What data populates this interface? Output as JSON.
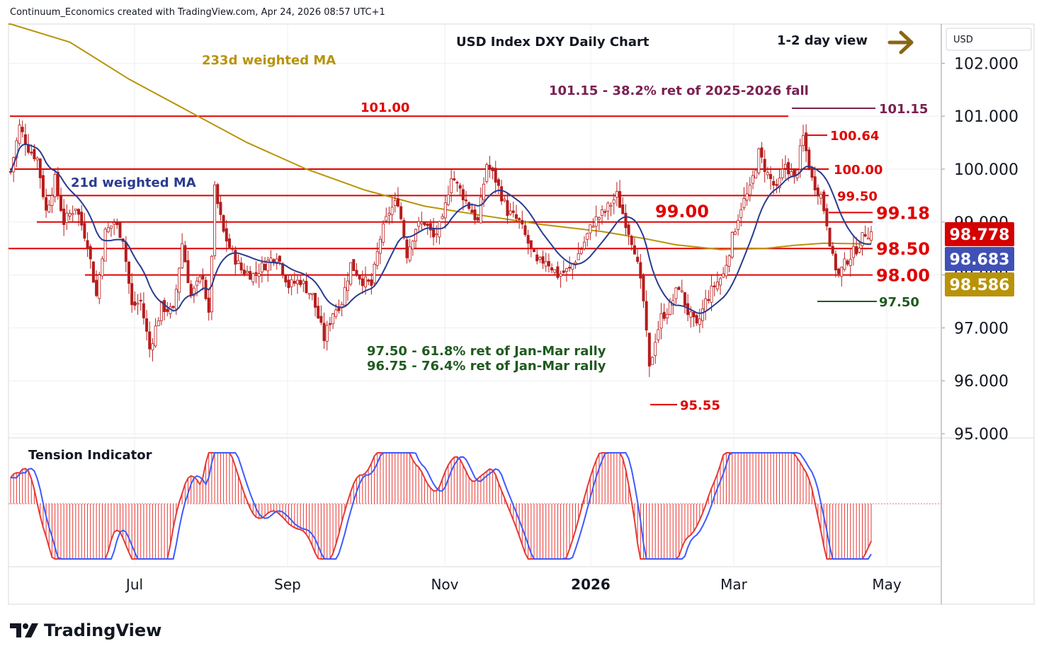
{
  "header": {
    "credit": "Continuum_Economics created with TradingView.com, Apr 24, 2026 08:57 UTC+1"
  },
  "brand": {
    "name": "TradingView"
  },
  "colors": {
    "level_line": "#e00000",
    "ma21": "#2a3b8f",
    "ma233": "#b8930a",
    "retrace_text": "#1f5a1f",
    "fib_text": "#7a1f4f",
    "candle": "#b71c1c",
    "osc_hist": "#e53935",
    "osc_line": "#3d5afe",
    "price_tag": "#d50000",
    "ma21_tag": "#3f51b5",
    "ma233_tag": "#b8930a",
    "arrow": "#8a6614"
  },
  "chart_data": {
    "type": "candlestick",
    "title": "USD Index DXY Daily Chart",
    "view_label": "1-2 day view",
    "view_icon": "right-arrow-icon",
    "currency": "USD",
    "y_ticks": [
      "102.000",
      "101.000",
      "100.000",
      "99.000",
      "98.000",
      "97.000",
      "96.000",
      "95.000"
    ],
    "ylim": [
      94.98,
      102.6
    ],
    "x_ticks": [
      "Jul",
      "Sep",
      "Nov",
      "2026",
      "Mar",
      "May"
    ],
    "levels": [
      {
        "label": "101.00",
        "value": 101.0
      },
      {
        "label": "100.00",
        "value": 100.0
      },
      {
        "label": "99.50",
        "value": 99.5
      },
      {
        "label": "99.00",
        "value": 99.0
      },
      {
        "label": "98.50",
        "value": 98.5
      },
      {
        "label": "98.00",
        "value": 98.0
      }
    ],
    "level_markers": [
      {
        "label": "101.15",
        "value": 101.15
      },
      {
        "label": "100.64",
        "value": 100.64
      },
      {
        "label": "99.18",
        "value": 99.18
      },
      {
        "label": "97.50",
        "value": 97.5
      },
      {
        "label": "95.55",
        "value": 95.55
      }
    ],
    "annotations": {
      "ma233": "233d weighted MA",
      "ma21": "21d weighted MA",
      "fib": "101.15 - 38.2% ret of 2025-2026 fall",
      "retrace1": "97.50 - 61.8% ret of Jan-Mar rally",
      "retrace2": "96.75 - 76.4% ret of Jan-Mar rally"
    },
    "price_tags": {
      "last": "98.778",
      "ma21": "98.683",
      "ma233": "98.586"
    },
    "oscillator": {
      "title": "Tension Indicator"
    },
    "close_path": [
      [
        0,
        99.95
      ],
      [
        3,
        100.8
      ],
      [
        6,
        100.4
      ],
      [
        9,
        100.2
      ],
      [
        12,
        99.2
      ],
      [
        15,
        99.8
      ],
      [
        18,
        99.0
      ],
      [
        22,
        99.3
      ],
      [
        26,
        98.6
      ],
      [
        29,
        97.6
      ],
      [
        32,
        98.8
      ],
      [
        35,
        99.0
      ],
      [
        38,
        98.7
      ],
      [
        41,
        97.4
      ],
      [
        44,
        97.5
      ],
      [
        47,
        96.6
      ],
      [
        51,
        97.4
      ],
      [
        55,
        97.3
      ],
      [
        58,
        98.6
      ],
      [
        61,
        97.6
      ],
      [
        65,
        98.0
      ],
      [
        67,
        97.2
      ],
      [
        69,
        99.6
      ],
      [
        72,
        98.8
      ],
      [
        75,
        98.4
      ],
      [
        78,
        98.1
      ],
      [
        82,
        98.0
      ],
      [
        86,
        98.2
      ],
      [
        90,
        98.4
      ],
      [
        94,
        97.8
      ],
      [
        98,
        97.9
      ],
      [
        102,
        97.6
      ],
      [
        106,
        96.8
      ],
      [
        109,
        97.3
      ],
      [
        112,
        97.5
      ],
      [
        115,
        98.2
      ],
      [
        119,
        97.9
      ],
      [
        122,
        97.8
      ],
      [
        125,
        98.7
      ],
      [
        128,
        99.2
      ],
      [
        131,
        99.4
      ],
      [
        134,
        98.4
      ],
      [
        137,
        98.9
      ],
      [
        140,
        99.0
      ],
      [
        143,
        98.7
      ],
      [
        146,
        99.0
      ],
      [
        149,
        99.9
      ],
      [
        152,
        99.6
      ],
      [
        155,
        99.3
      ],
      [
        158,
        99.0
      ],
      [
        161,
        100.1
      ],
      [
        164,
        99.8
      ],
      [
        168,
        99.2
      ],
      [
        172,
        99.0
      ],
      [
        175,
        98.6
      ],
      [
        178,
        98.2
      ],
      [
        181,
        98.3
      ],
      [
        185,
        98.0
      ],
      [
        189,
        98.1
      ],
      [
        193,
        98.5
      ],
      [
        197,
        99.0
      ],
      [
        201,
        99.2
      ],
      [
        205,
        99.5
      ],
      [
        208,
        99.0
      ],
      [
        211,
        98.5
      ],
      [
        214,
        97.5
      ],
      [
        216,
        96.2
      ],
      [
        218,
        96.8
      ],
      [
        220,
        97.2
      ],
      [
        223,
        97.4
      ],
      [
        226,
        97.8
      ],
      [
        229,
        97.3
      ],
      [
        232,
        97.0
      ],
      [
        235,
        97.5
      ],
      [
        238,
        97.8
      ],
      [
        241,
        98.0
      ],
      [
        244,
        98.7
      ],
      [
        247,
        99.3
      ],
      [
        250,
        99.6
      ],
      [
        253,
        100.3
      ],
      [
        256,
        99.9
      ],
      [
        259,
        99.6
      ],
      [
        262,
        100.1
      ],
      [
        265,
        99.8
      ],
      [
        268,
        100.6
      ],
      [
        271,
        99.8
      ],
      [
        274,
        99.5
      ],
      [
        276,
        99.0
      ],
      [
        278,
        98.3
      ],
      [
        280,
        98.0
      ],
      [
        283,
        98.3
      ],
      [
        286,
        98.5
      ],
      [
        289,
        98.8
      ]
    ]
  }
}
